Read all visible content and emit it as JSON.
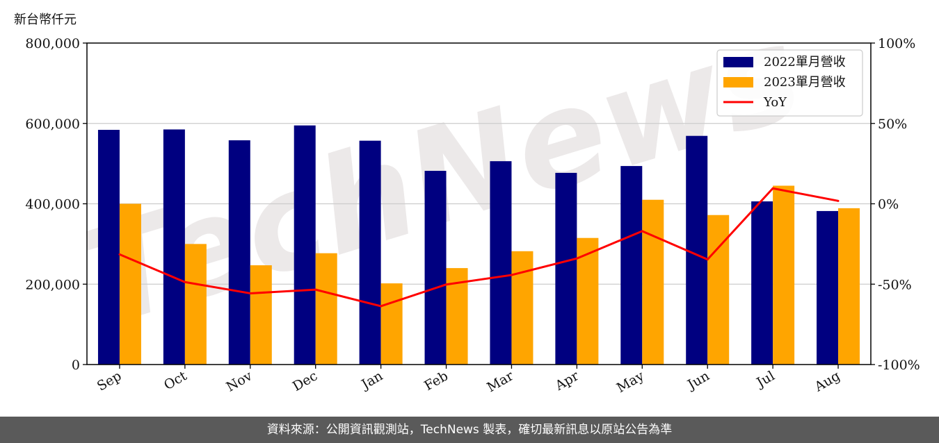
{
  "unit_label": "新台幣仟元",
  "footer_text": "資料來源：公開資訊觀測站，TechNews 製表，確切最新訊息以原站公告為準",
  "watermark_text": "TechNews",
  "colors": {
    "series_2022": "#000080",
    "series_2023": "#ffa500",
    "yoy": "#ff0000",
    "grid": "#cccccc"
  },
  "chart_data": {
    "type": "bar",
    "categories": [
      "Sep",
      "Oct",
      "Nov",
      "Dec",
      "Jan",
      "Feb",
      "Mar",
      "Apr",
      "May",
      "Jun",
      "Jul",
      "Aug"
    ],
    "series": [
      {
        "name": "2022單月營收",
        "values": [
          584000,
          585000,
          558000,
          595000,
          557000,
          482000,
          506000,
          477000,
          494000,
          569000,
          406000,
          382000
        ]
      },
      {
        "name": "2023單月營收",
        "values": [
          400000,
          300000,
          247000,
          277000,
          202000,
          240000,
          282000,
          315000,
          410000,
          372000,
          445000,
          389000
        ]
      }
    ],
    "line_series": {
      "name": "YoY",
      "values": [
        -31.5,
        -48.7,
        -55.7,
        -53.4,
        -63.7,
        -50.2,
        -44.3,
        -34.0,
        -17.0,
        -34.6,
        9.6,
        1.8
      ]
    },
    "y_left_ticks": [
      "0",
      "200,000",
      "400,000",
      "600,000",
      "800,000"
    ],
    "y_right_ticks": [
      "-100%",
      "-50%",
      "0%",
      "50%",
      "100%"
    ],
    "ylim": [
      0,
      800000
    ],
    "y2lim": [
      -100,
      100
    ],
    "grid": "horizontal",
    "legend_placement": "top-right"
  }
}
